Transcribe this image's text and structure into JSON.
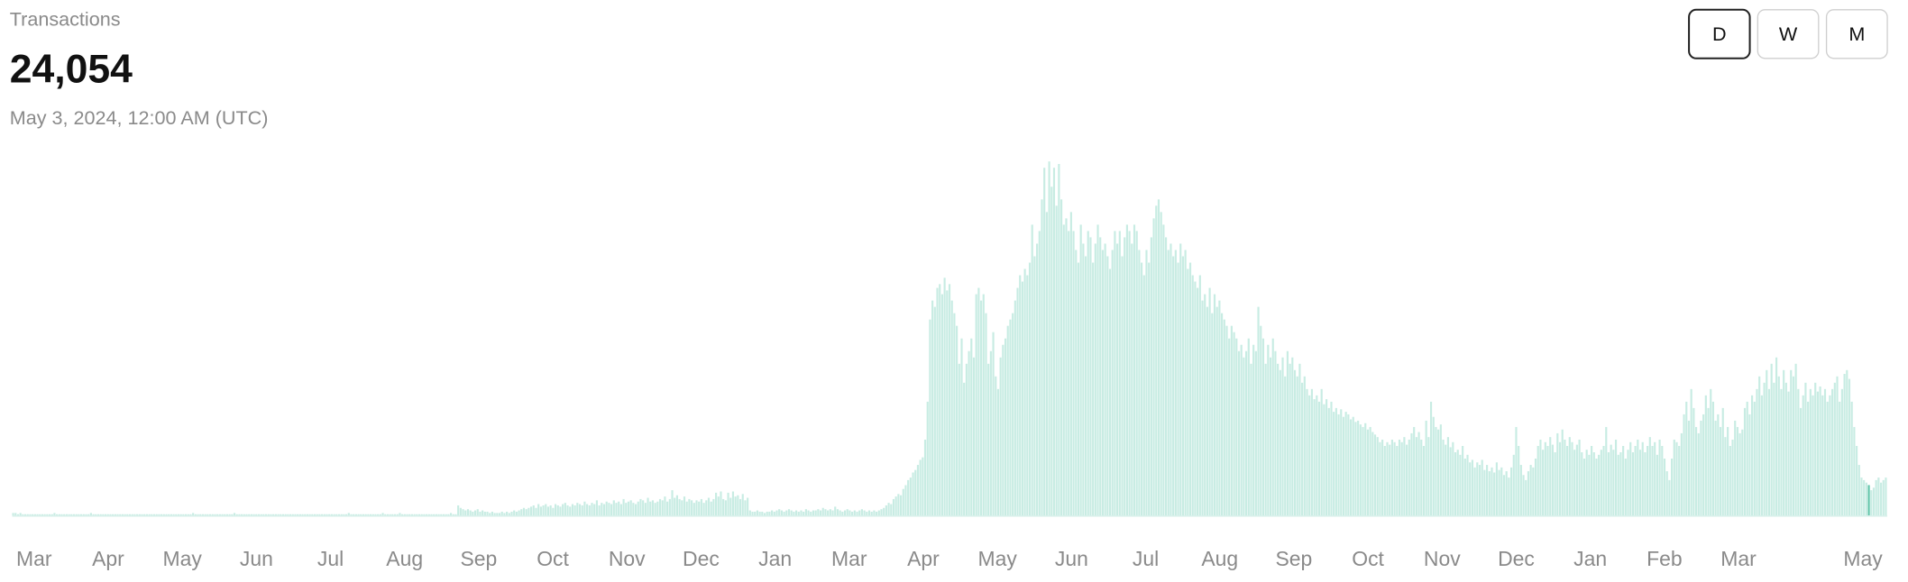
{
  "header": {
    "title": "Transactions",
    "date": "May 3, 2024, 12:00 AM (UTC)"
  },
  "buttons": [
    "D",
    "W",
    "M"
  ],
  "active_button": "D",
  "chart_data": {
    "type": "bar",
    "selected": {
      "value": 24054,
      "label": "24,054"
    },
    "color": "#c8ece3",
    "highlight_color": "#5ec4a8",
    "ylim": [
      0,
      300000
    ],
    "x_labels": [
      "Mar",
      "Apr",
      "May",
      "Jun",
      "Jul",
      "Aug",
      "Sep",
      "Oct",
      "Nov",
      "Dec",
      "Jan",
      "Mar",
      "Apr",
      "May",
      "Jun",
      "Jul",
      "Aug",
      "Sep",
      "Oct",
      "Nov",
      "Dec",
      "Jan",
      "Feb",
      "Mar",
      "May"
    ],
    "values": [
      2000,
      2000,
      1000,
      2000,
      1000,
      1000,
      1000,
      1000,
      1000,
      1000,
      1000,
      1000,
      1000,
      1000,
      1000,
      1000,
      1000,
      2000,
      1000,
      1000,
      1000,
      1000,
      1000,
      1000,
      1000,
      1000,
      1000,
      1000,
      1000,
      1000,
      1000,
      1000,
      2000,
      1000,
      1000,
      1000,
      1000,
      1000,
      1000,
      1000,
      1000,
      1000,
      1000,
      1000,
      1000,
      1000,
      1000,
      1000,
      1000,
      1000,
      1000,
      1000,
      1000,
      1000,
      1000,
      1000,
      1000,
      1000,
      1000,
      1000,
      1000,
      1000,
      1000,
      1000,
      1000,
      1000,
      1000,
      1000,
      1000,
      1000,
      1000,
      1000,
      1000,
      1000,
      2000,
      1000,
      1000,
      1000,
      1000,
      1000,
      1000,
      1000,
      1000,
      1000,
      1000,
      1000,
      1000,
      1000,
      1000,
      1000,
      1000,
      2000,
      1000,
      1000,
      1000,
      1000,
      1000,
      1000,
      1000,
      1000,
      1000,
      1000,
      1000,
      1000,
      1000,
      1000,
      1000,
      1000,
      1000,
      1000,
      1000,
      1000,
      1000,
      1000,
      1000,
      1000,
      1000,
      1000,
      1000,
      1000,
      1000,
      1000,
      1000,
      1000,
      1000,
      1000,
      1000,
      1000,
      1000,
      1000,
      1000,
      1000,
      1000,
      1000,
      1000,
      1000,
      1000,
      1000,
      2000,
      1000,
      1000,
      1000,
      1000,
      1000,
      1000,
      1000,
      1000,
      1000,
      1000,
      1000,
      1000,
      1000,
      2000,
      1000,
      1000,
      1000,
      1000,
      1000,
      1000,
      2000,
      1000,
      1000,
      1000,
      1000,
      1000,
      1000,
      1000,
      1000,
      1000,
      1000,
      1000,
      1000,
      1000,
      1000,
      1000,
      1000,
      1000,
      1000,
      1000,
      1000,
      2000,
      1000,
      1000,
      8000,
      6000,
      5000,
      4000,
      5000,
      4000,
      3000,
      4000,
      5000,
      3000,
      4000,
      3000,
      3000,
      2000,
      3000,
      2000,
      2000,
      2000,
      3000,
      2000,
      3000,
      2000,
      3000,
      4000,
      3000,
      4000,
      5000,
      6000,
      5000,
      6000,
      7000,
      8000,
      6000,
      9000,
      7000,
      8000,
      9000,
      7000,
      8000,
      6000,
      9000,
      8000,
      7000,
      9000,
      10000,
      8000,
      7000,
      9000,
      8000,
      10000,
      9000,
      8000,
      11000,
      9000,
      8000,
      10000,
      9000,
      12000,
      8000,
      10000,
      9000,
      11000,
      10000,
      9000,
      12000,
      10000,
      11000,
      9000,
      13000,
      10000,
      11000,
      12000,
      10000,
      9000,
      11000,
      13000,
      12000,
      10000,
      14000,
      11000,
      12000,
      10000,
      11000,
      13000,
      12000,
      15000,
      11000,
      13000,
      20000,
      14000,
      16000,
      13000,
      12000,
      15000,
      11000,
      13000,
      12000,
      10000,
      12000,
      11000,
      13000,
      10000,
      12000,
      14000,
      11000,
      13000,
      18000,
      15000,
      19000,
      13000,
      12000,
      18000,
      14000,
      19000,
      15000,
      16000,
      13000,
      17000,
      12000,
      14000,
      4000,
      3000,
      3000,
      4000,
      3000,
      3000,
      2000,
      3000,
      3000,
      4000,
      3000,
      4000,
      5000,
      4000,
      3000,
      4000,
      5000,
      4000,
      3000,
      4000,
      3000,
      4000,
      3000,
      5000,
      4000,
      3000,
      4000,
      4000,
      5000,
      4000,
      6000,
      5000,
      4000,
      5000,
      4000,
      7000,
      5000,
      4000,
      3000,
      4000,
      5000,
      4000,
      3000,
      4000,
      3000,
      4000,
      5000,
      4000,
      3000,
      4000,
      3000,
      4000,
      3000,
      4000,
      5000,
      6000,
      8000,
      10000,
      9000,
      13000,
      15000,
      17000,
      16000,
      21000,
      24000,
      28000,
      30000,
      34000,
      36000,
      40000,
      44000,
      46000,
      60000,
      90000,
      155000,
      170000,
      165000,
      180000,
      183000,
      175000,
      188000,
      178000,
      183000,
      170000,
      160000,
      150000,
      120000,
      140000,
      105000,
      120000,
      130000,
      140000,
      125000,
      175000,
      180000,
      170000,
      175000,
      160000,
      120000,
      130000,
      145000,
      110000,
      100000,
      125000,
      135000,
      140000,
      150000,
      155000,
      160000,
      170000,
      180000,
      190000,
      185000,
      195000,
      190000,
      200000,
      230000,
      205000,
      215000,
      225000,
      250000,
      275000,
      240000,
      280000,
      260000,
      275000,
      245000,
      278000,
      250000,
      230000,
      235000,
      225000,
      240000,
      225000,
      210000,
      200000,
      230000,
      215000,
      205000,
      225000,
      220000,
      200000,
      215000,
      230000,
      220000,
      210000,
      215000,
      205000,
      195000,
      210000,
      225000,
      215000,
      225000,
      205000,
      220000,
      230000,
      225000,
      215000,
      230000,
      225000,
      210000,
      200000,
      190000,
      210000,
      200000,
      220000,
      235000,
      245000,
      250000,
      240000,
      230000,
      220000,
      210000,
      215000,
      205000,
      210000,
      200000,
      215000,
      205000,
      210000,
      195000,
      200000,
      190000,
      185000,
      180000,
      190000,
      170000,
      175000,
      165000,
      180000,
      160000,
      175000,
      165000,
      170000,
      160000,
      155000,
      150000,
      140000,
      150000,
      145000,
      140000,
      130000,
      135000,
      125000,
      130000,
      140000,
      120000,
      135000,
      130000,
      165000,
      150000,
      140000,
      120000,
      135000,
      125000,
      140000,
      130000,
      120000,
      115000,
      125000,
      110000,
      130000,
      120000,
      125000,
      115000,
      110000,
      120000,
      105000,
      110000,
      100000,
      95000,
      100000,
      92000,
      95000,
      90000,
      100000,
      88000,
      92000,
      85000,
      90000,
      82000,
      85000,
      80000,
      84000,
      78000,
      82000,
      80000,
      76000,
      78000,
      74000,
      75000,
      72000,
      70000,
      73000,
      68000,
      70000,
      66000,
      64000,
      62000,
      58000,
      60000,
      55000,
      58000,
      56000,
      60000,
      58000,
      55000,
      60000,
      58000,
      62000,
      56000,
      60000,
      65000,
      70000,
      62000,
      66000,
      60000,
      55000,
      75000,
      62000,
      90000,
      78000,
      70000,
      68000,
      72000,
      60000,
      56000,
      62000,
      54000,
      58000,
      50000,
      52000,
      48000,
      55000,
      45000,
      48000,
      42000,
      44000,
      38000,
      42000,
      40000,
      44000,
      36000,
      40000,
      35000,
      38000,
      34000,
      42000,
      36000,
      38000,
      32000,
      35000,
      30000,
      38000,
      48000,
      70000,
      55000,
      40000,
      32000,
      28000,
      35000,
      40000,
      38000,
      45000,
      55000,
      60000,
      52000,
      58000,
      55000,
      62000,
      56000,
      50000,
      65000,
      58000,
      68000,
      60000,
      55000,
      62000,
      58000,
      52000,
      56000,
      60000,
      50000,
      45000,
      52000,
      48000,
      55000,
      50000,
      45000,
      48000,
      52000,
      55000,
      70000,
      50000,
      56000,
      52000,
      60000,
      48000,
      50000,
      55000,
      45000,
      52000,
      58000,
      50000,
      55000,
      60000,
      52000,
      58000,
      50000,
      55000,
      62000,
      55000,
      58000,
      48000,
      60000,
      55000,
      45000,
      35000,
      28000,
      45000,
      60000,
      58000,
      55000,
      65000,
      80000,
      90000,
      75000,
      100000,
      85000,
      70000,
      65000,
      75000,
      80000,
      95000,
      85000,
      100000,
      90000,
      75000,
      80000,
      70000,
      85000,
      62000,
      70000,
      55000,
      60000,
      75000,
      70000,
      65000,
      68000,
      85000,
      90000,
      80000,
      95000,
      90000,
      100000,
      110000,
      95000,
      105000,
      115000,
      100000,
      120000,
      105000,
      125000,
      110000,
      100000,
      115000,
      105000,
      98000,
      115000,
      110000,
      120000,
      100000,
      85000,
      95000,
      105000,
      90000,
      100000,
      95000,
      105000,
      98000,
      102000,
      95000,
      100000,
      90000,
      95000,
      100000,
      105000,
      110000,
      90000,
      100000,
      112000,
      115000,
      108000,
      90000,
      70000,
      55000,
      40000,
      30000,
      28000,
      26000,
      24054,
      20000,
      22000,
      28000,
      30000,
      26000,
      28000,
      30000
    ]
  }
}
